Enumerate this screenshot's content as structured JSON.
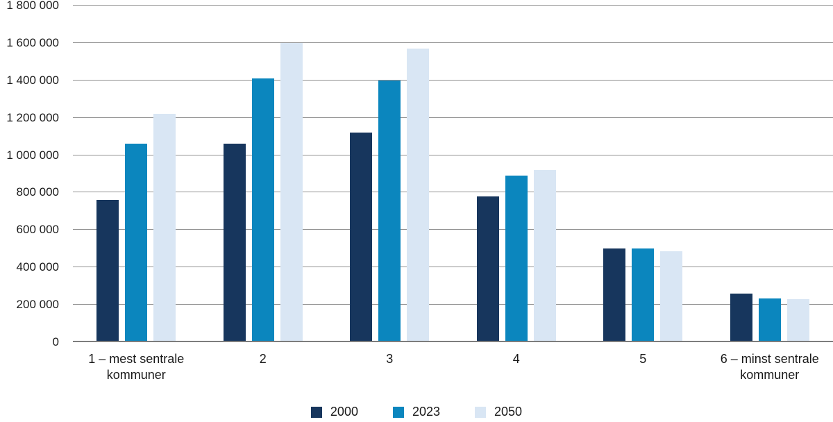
{
  "chart_data": {
    "type": "bar",
    "categories": [
      "1 – mest sentrale\nkommuner",
      "2",
      "3",
      "4",
      "5",
      "6 – minst sentrale\nkommuner"
    ],
    "series": [
      {
        "name": "2000",
        "color": "#17365D",
        "values": [
          760000,
          1060000,
          1120000,
          780000,
          500000,
          260000
        ]
      },
      {
        "name": "2023",
        "color": "#0B86BE",
        "values": [
          1060000,
          1410000,
          1400000,
          890000,
          500000,
          235000
        ]
      },
      {
        "name": "2050",
        "color": "#D9E6F4",
        "values": [
          1220000,
          1600000,
          1570000,
          920000,
          485000,
          230000
        ]
      }
    ],
    "title": "",
    "xlabel": "",
    "ylabel": "",
    "ylim": [
      0,
      1800000
    ],
    "ytick_step": 200000,
    "ytick_labels": [
      "0",
      "200 000",
      "400 000",
      "600 000",
      "800 000",
      "1 000 000",
      "1 200 000",
      "1 400 000",
      "1 600 000",
      "1 800 000"
    ],
    "grid": true,
    "legend_position": "bottom",
    "legend_labels": [
      "2000",
      "2023",
      "2050"
    ],
    "colors": {
      "gridline": "#8F8F8F",
      "axis_line": "#7D7D7D",
      "text": "#1A1A1A",
      "background": "#FFFFFF",
      "series_2000": "#17365D",
      "series_2023": "#0B86BE",
      "series_2050": "#D9E6F4"
    }
  }
}
